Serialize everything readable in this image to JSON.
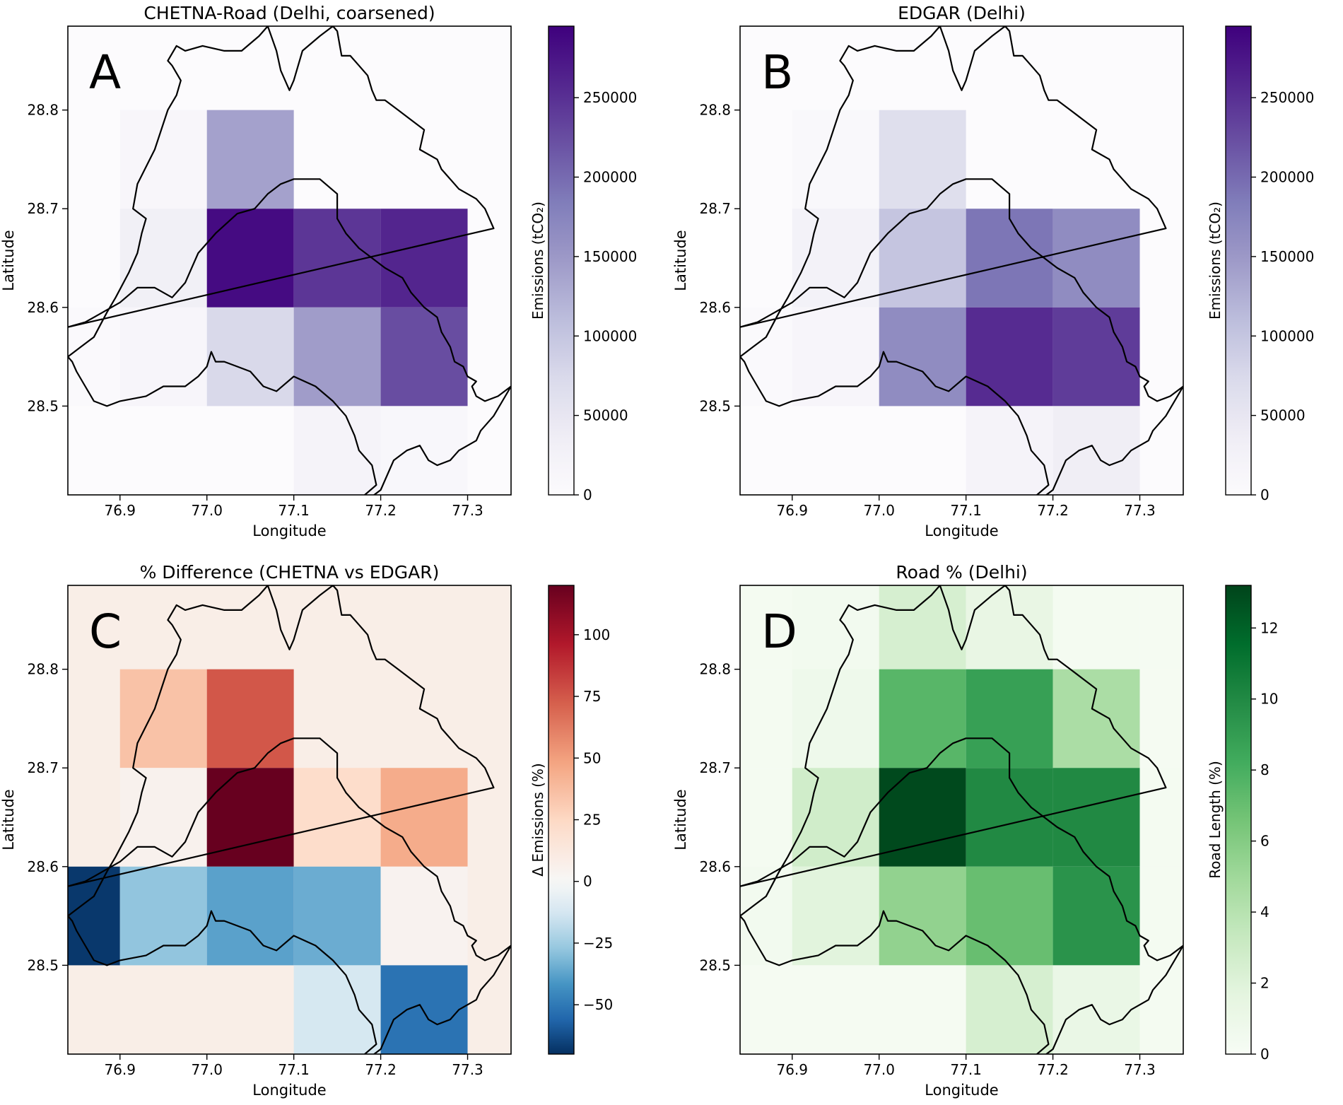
{
  "figure": {
    "description_none": ""
  },
  "boundary": {
    "lon": [
      76.84,
      76.86,
      76.88,
      76.9,
      76.92,
      76.94,
      76.96,
      76.975,
      76.99,
      77.01,
      77.035,
      77.055,
      77.07,
      77.085,
      77.1,
      77.13,
      77.15,
      77.15,
      77.16,
      77.175,
      77.19,
      77.205,
      77.225,
      77.235,
      77.25,
      77.265,
      77.27,
      77.28,
      77.285,
      77.295,
      77.3,
      77.31,
      77.305,
      77.31,
      77.32,
      77.335,
      77.35,
      77.33,
      77.315,
      77.31,
      77.29,
      77.28,
      77.265,
      77.255,
      77.245,
      77.23,
      77.215,
      77.2,
      77.185,
      77.175,
      77.195,
      77.19,
      77.175,
      77.17,
      77.16,
      77.145,
      77.125,
      77.1,
      77.08,
      77.065,
      77.05,
      77.035,
      77.02,
      77.01,
      77.005,
      77.0,
      76.99,
      76.975,
      76.95,
      76.93,
      76.9,
      76.885,
      76.87,
      76.86,
      76.85,
      76.845,
      76.84,
      76.855,
      76.87,
      76.885,
      76.895,
      76.91,
      76.92,
      76.925,
      76.93,
      76.915,
      76.92,
      76.94,
      76.955,
      76.965,
      76.97,
      76.96,
      76.955,
      76.965,
      76.975,
      76.975,
      76.995,
      77.02,
      77.04,
      77.06,
      77.07,
      77.08,
      77.085,
      77.095,
      77.1,
      77.11,
      77.13,
      77.145,
      77.15,
      77.155,
      77.165,
      77.175,
      77.185,
      77.19,
      77.195,
      77.205,
      77.22,
      77.235,
      77.25,
      77.245,
      77.265,
      77.27,
      77.28,
      77.29,
      77.31,
      77.32,
      77.325,
      77.33
    ],
    "lat": [
      28.58,
      28.585,
      28.595,
      28.605,
      28.62,
      28.62,
      28.61,
      28.625,
      28.655,
      28.675,
      28.695,
      28.7,
      28.715,
      28.725,
      28.73,
      28.73,
      28.715,
      28.69,
      28.675,
      28.66,
      28.65,
      28.64,
      28.63,
      28.615,
      28.6,
      28.59,
      28.575,
      28.56,
      28.545,
      28.54,
      28.53,
      28.525,
      28.52,
      28.51,
      28.505,
      28.51,
      28.52,
      28.49,
      28.475,
      28.465,
      28.455,
      28.445,
      28.44,
      28.445,
      28.46,
      28.455,
      28.445,
      28.415,
      28.405,
      28.405,
      28.42,
      28.44,
      28.455,
      28.47,
      28.49,
      28.505,
      28.52,
      28.53,
      28.515,
      28.52,
      28.535,
      28.54,
      28.545,
      28.545,
      28.555,
      28.54,
      28.53,
      28.52,
      28.52,
      28.51,
      28.505,
      28.5,
      28.505,
      28.52,
      28.535,
      28.545,
      28.55,
      28.56,
      28.57,
      28.595,
      28.61,
      28.635,
      28.655,
      28.675,
      28.69,
      28.7,
      28.725,
      28.76,
      28.8,
      28.815,
      28.83,
      28.845,
      28.85,
      28.865,
      28.86,
      28.86,
      28.865,
      28.86,
      28.86,
      28.875,
      28.885,
      28.86,
      28.84,
      28.82,
      28.83,
      28.86,
      28.875,
      28.885,
      28.88,
      28.855,
      28.855,
      28.845,
      28.835,
      28.82,
      28.81,
      28.81,
      28.8,
      28.79,
      28.78,
      28.76,
      28.75,
      28.74,
      28.73,
      28.72,
      28.71,
      28.7,
      28.69,
      28.68
    ]
  },
  "chart_data": [
    {
      "type": "heatmap",
      "panel_label": "A",
      "title": "CHETNA-Road (Delhi, coarsened)",
      "xlabel": "Longitude",
      "ylabel": "Latitude",
      "xlim": [
        76.84,
        77.35
      ],
      "ylim": [
        28.41,
        28.885
      ],
      "xticks": [
        76.9,
        77.0,
        77.1,
        77.2,
        77.3
      ],
      "yticks": [
        28.5,
        28.6,
        28.7,
        28.8
      ],
      "xtick_labels": [
        "76.9",
        "77.0",
        "77.1",
        "77.2",
        "77.3"
      ],
      "ytick_labels": [
        "28.5",
        "28.6",
        "28.7",
        "28.8"
      ],
      "lon_edges": [
        76.9,
        77.0,
        77.1,
        77.2,
        77.3
      ],
      "lat_edges": [
        28.5,
        28.6,
        28.7,
        28.8
      ],
      "cells": [
        {
          "lon": 76.9,
          "lat": 28.7,
          "value": 12000
        },
        {
          "lon": 77.0,
          "lat": 28.7,
          "value": 140000
        },
        {
          "lon": 76.9,
          "lat": 28.6,
          "value": 30000
        },
        {
          "lon": 77.0,
          "lat": 28.6,
          "value": 285000
        },
        {
          "lon": 77.1,
          "lat": 28.6,
          "value": 245000
        },
        {
          "lon": 77.2,
          "lat": 28.6,
          "value": 260000
        },
        {
          "lon": 76.84,
          "lat": 28.5,
          "value": 5000
        },
        {
          "lon": 76.9,
          "lat": 28.5,
          "value": 15000
        },
        {
          "lon": 77.0,
          "lat": 28.5,
          "value": 75000
        },
        {
          "lon": 77.1,
          "lat": 28.5,
          "value": 145000
        },
        {
          "lon": 77.2,
          "lat": 28.5,
          "value": 225000
        },
        {
          "lon": 77.1,
          "lat": 28.41,
          "value": 20000
        },
        {
          "lon": 77.2,
          "lat": 28.41,
          "value": 10000
        }
      ],
      "background_value": 0,
      "colormap": "Purples",
      "colorbar": {
        "label": "Emissions (tCO₂)",
        "min": 0,
        "max": 295000,
        "ticks": [
          0,
          50000,
          100000,
          150000,
          200000,
          250000
        ],
        "tick_labels": [
          "0",
          "50000",
          "100000",
          "150000",
          "200000",
          "250000"
        ]
      }
    },
    {
      "type": "heatmap",
      "panel_label": "B",
      "title": "EDGAR (Delhi)",
      "xlabel": "Longitude",
      "ylabel": "Latitude",
      "xlim": [
        76.84,
        77.35
      ],
      "ylim": [
        28.41,
        28.885
      ],
      "xticks": [
        76.9,
        77.0,
        77.1,
        77.2,
        77.3
      ],
      "yticks": [
        28.5,
        28.6,
        28.7,
        28.8
      ],
      "xtick_labels": [
        "76.9",
        "77.0",
        "77.1",
        "77.2",
        "77.3"
      ],
      "ytick_labels": [
        "28.5",
        "28.6",
        "28.7",
        "28.8"
      ],
      "cells": [
        {
          "lon": 76.9,
          "lat": 28.7,
          "value": 8000
        },
        {
          "lon": 77.0,
          "lat": 28.7,
          "value": 65000
        },
        {
          "lon": 76.9,
          "lat": 28.6,
          "value": 25000
        },
        {
          "lon": 77.0,
          "lat": 28.6,
          "value": 100000
        },
        {
          "lon": 77.1,
          "lat": 28.6,
          "value": 190000
        },
        {
          "lon": 77.2,
          "lat": 28.6,
          "value": 165000
        },
        {
          "lon": 76.84,
          "lat": 28.5,
          "value": 5000
        },
        {
          "lon": 76.9,
          "lat": 28.5,
          "value": 15000
        },
        {
          "lon": 77.0,
          "lat": 28.5,
          "value": 165000
        },
        {
          "lon": 77.1,
          "lat": 28.5,
          "value": 255000
        },
        {
          "lon": 77.2,
          "lat": 28.5,
          "value": 240000
        },
        {
          "lon": 77.1,
          "lat": 28.41,
          "value": 20000
        },
        {
          "lon": 77.2,
          "lat": 28.41,
          "value": 35000
        }
      ],
      "background_value": 0,
      "colormap": "Purples",
      "colorbar": {
        "label": "Emissions (tCO₂)",
        "min": 0,
        "max": 295000,
        "ticks": [
          0,
          50000,
          100000,
          150000,
          200000,
          250000
        ],
        "tick_labels": [
          "0",
          "50000",
          "100000",
          "150000",
          "200000",
          "250000"
        ]
      }
    },
    {
      "type": "heatmap",
      "panel_label": "C",
      "title": "% Difference (CHETNA vs EDGAR)",
      "xlabel": "Longitude",
      "ylabel": "Latitude",
      "xlim": [
        76.84,
        77.35
      ],
      "ylim": [
        28.41,
        28.885
      ],
      "xticks": [
        76.9,
        77.0,
        77.1,
        77.2,
        77.3
      ],
      "yticks": [
        28.5,
        28.6,
        28.7,
        28.8
      ],
      "xtick_labels": [
        "76.9",
        "77.0",
        "77.1",
        "77.2",
        "77.3"
      ],
      "ytick_labels": [
        "28.5",
        "28.6",
        "28.7",
        "28.8"
      ],
      "cells": [
        {
          "lon": 76.9,
          "lat": 28.7,
          "value": 35
        },
        {
          "lon": 77.0,
          "lat": 28.7,
          "value": 75
        },
        {
          "lon": 76.9,
          "lat": 28.6,
          "value": 5
        },
        {
          "lon": 77.0,
          "lat": 28.6,
          "value": 120
        },
        {
          "lon": 77.1,
          "lat": 28.6,
          "value": 22
        },
        {
          "lon": 77.2,
          "lat": 28.6,
          "value": 45
        },
        {
          "lon": 76.84,
          "lat": 28.5,
          "value": -68
        },
        {
          "lon": 76.9,
          "lat": 28.5,
          "value": -28
        },
        {
          "lon": 77.0,
          "lat": 28.5,
          "value": -38
        },
        {
          "lon": 77.1,
          "lat": 28.5,
          "value": -35
        },
        {
          "lon": 77.2,
          "lat": 28.5,
          "value": 4
        },
        {
          "lon": 77.1,
          "lat": 28.41,
          "value": -12
        },
        {
          "lon": 77.2,
          "lat": 28.41,
          "value": -52
        }
      ],
      "background_value": 8,
      "colormap": "RdBu_r",
      "colorbar": {
        "label": "Δ Emissions (%)",
        "min": -70,
        "max": 120,
        "ticks": [
          -50,
          -25,
          0,
          25,
          50,
          75,
          100
        ],
        "tick_labels": [
          "−50",
          "−25",
          "0",
          "25",
          "50",
          "75",
          "100"
        ]
      }
    },
    {
      "type": "heatmap",
      "panel_label": "D",
      "title": "Road % (Delhi)",
      "xlabel": "Longitude",
      "ylabel": "Latitude",
      "xlim": [
        76.84,
        77.35
      ],
      "ylim": [
        28.41,
        28.885
      ],
      "xticks": [
        76.9,
        77.0,
        77.1,
        77.2,
        77.3
      ],
      "yticks": [
        28.5,
        28.6,
        28.7,
        28.8
      ],
      "xtick_labels": [
        "76.9",
        "77.0",
        "77.1",
        "77.2",
        "77.3"
      ],
      "ytick_labels": [
        "28.5",
        "28.6",
        "28.7",
        "28.8"
      ],
      "cells": [
        {
          "lon": 76.84,
          "lat": 28.8,
          "value": 0.3
        },
        {
          "lon": 76.9,
          "lat": 28.8,
          "value": 0.5
        },
        {
          "lon": 77.0,
          "lat": 28.8,
          "value": 2.5
        },
        {
          "lon": 77.1,
          "lat": 28.8,
          "value": 1.3
        },
        {
          "lon": 77.2,
          "lat": 28.8,
          "value": 0.3
        },
        {
          "lon": 77.3,
          "lat": 28.8,
          "value": 0.2
        },
        {
          "lon": 76.84,
          "lat": 28.7,
          "value": 0.3
        },
        {
          "lon": 76.9,
          "lat": 28.7,
          "value": 0.8
        },
        {
          "lon": 77.0,
          "lat": 28.7,
          "value": 7.5
        },
        {
          "lon": 77.1,
          "lat": 28.7,
          "value": 8.8
        },
        {
          "lon": 77.2,
          "lat": 28.7,
          "value": 4.5
        },
        {
          "lon": 77.3,
          "lat": 28.7,
          "value": 0.2
        },
        {
          "lon": 76.84,
          "lat": 28.6,
          "value": 0.3
        },
        {
          "lon": 76.9,
          "lat": 28.6,
          "value": 2.8
        },
        {
          "lon": 77.0,
          "lat": 28.6,
          "value": 13.0
        },
        {
          "lon": 77.1,
          "lat": 28.6,
          "value": 10.0
        },
        {
          "lon": 77.2,
          "lat": 28.6,
          "value": 10.0
        },
        {
          "lon": 77.3,
          "lat": 28.6,
          "value": 0.3
        },
        {
          "lon": 76.84,
          "lat": 28.5,
          "value": 0.5
        },
        {
          "lon": 76.9,
          "lat": 28.5,
          "value": 1.8
        },
        {
          "lon": 77.0,
          "lat": 28.5,
          "value": 5.5
        },
        {
          "lon": 77.1,
          "lat": 28.5,
          "value": 7.0
        },
        {
          "lon": 77.2,
          "lat": 28.5,
          "value": 9.5
        },
        {
          "lon": 77.3,
          "lat": 28.5,
          "value": 0.3
        },
        {
          "lon": 76.84,
          "lat": 28.41,
          "value": 0.2
        },
        {
          "lon": 76.9,
          "lat": 28.41,
          "value": 0.2
        },
        {
          "lon": 77.0,
          "lat": 28.41,
          "value": 0.2
        },
        {
          "lon": 77.1,
          "lat": 28.41,
          "value": 2.5
        },
        {
          "lon": 77.2,
          "lat": 28.41,
          "value": 1.2
        },
        {
          "lon": 77.3,
          "lat": 28.41,
          "value": 0.3
        }
      ],
      "background_value": 0,
      "colormap": "Greens",
      "colorbar": {
        "label": "Road Length (%)",
        "min": 0,
        "max": 13.2,
        "ticks": [
          0,
          2,
          4,
          6,
          8,
          10,
          12
        ],
        "tick_labels": [
          "0",
          "2",
          "4",
          "6",
          "8",
          "10",
          "12"
        ]
      }
    }
  ]
}
